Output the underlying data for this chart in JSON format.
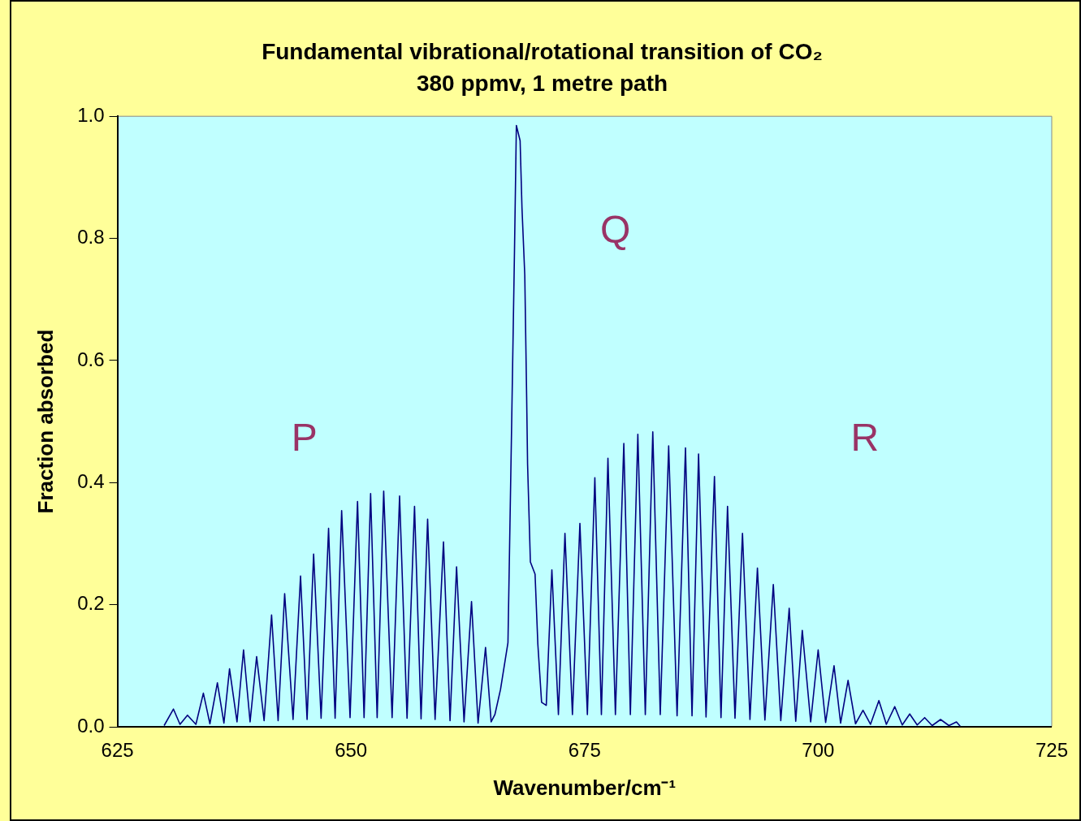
{
  "chart_data": {
    "type": "line",
    "title": "Fundamental vibrational/rotational transition of CO₂",
    "subtitle": "380 ppmv, 1 metre path",
    "xlabel": "Wavenumber/cm⁻¹",
    "ylabel": "Fraction absorbed",
    "xlim": [
      625,
      725
    ],
    "xticks": [
      625,
      650,
      675,
      700,
      725
    ],
    "ylim": [
      0,
      1
    ],
    "yticks": [
      {
        "value": 0,
        "label": "0.0"
      },
      {
        "value": 0.2,
        "label": "0.2"
      },
      {
        "value": 0.4,
        "label": "0.4"
      },
      {
        "value": 0.6,
        "label": "0.6"
      },
      {
        "value": 0.8,
        "label": "0.8"
      },
      {
        "value": 1,
        "label": "1.0"
      }
    ],
    "legend": false,
    "annotations": [
      "P",
      "Q",
      "R"
    ],
    "series": [
      {
        "color": "#000080",
        "x": [
          630.0,
          631.0,
          631.7,
          632.5,
          633.4,
          634.2,
          634.9,
          635.7,
          636.4,
          637.0,
          637.8,
          638.5,
          639.2,
          639.9,
          640.7,
          641.5,
          642.2,
          642.9,
          643.8,
          644.6,
          645.3,
          646.0,
          646.8,
          647.6,
          648.3,
          649.0,
          649.9,
          650.7,
          651.4,
          652.1,
          652.8,
          653.5,
          654.4,
          655.2,
          656.0,
          656.8,
          657.5,
          658.2,
          659.0,
          659.9,
          660.6,
          661.3,
          662.1,
          662.9,
          663.6,
          664.4,
          665.0,
          665.4,
          666.0,
          666.8,
          667.2,
          667.5,
          667.7,
          668.1,
          668.3,
          668.6,
          668.8,
          668.9,
          669.2,
          669.7,
          670.0,
          670.4,
          670.9,
          671.5,
          672.2,
          672.9,
          673.7,
          674.5,
          675.3,
          676.1,
          676.8,
          677.5,
          678.3,
          679.2,
          679.9,
          680.7,
          681.5,
          682.3,
          683.1,
          684.0,
          684.9,
          685.8,
          686.5,
          687.2,
          688.0,
          688.9,
          689.6,
          690.3,
          691.1,
          691.9,
          692.7,
          693.5,
          694.3,
          695.2,
          696.0,
          696.9,
          697.6,
          698.3,
          699.2,
          700.0,
          700.8,
          701.7,
          702.4,
          703.2,
          704.0,
          704.8,
          705.6,
          706.5,
          707.3,
          708.2,
          709.0,
          709.8,
          710.6,
          711.4,
          712.2,
          713.1,
          714.0,
          714.8,
          715.2
        ],
        "values": [
          0.002,
          0.029,
          0.004,
          0.019,
          0.004,
          0.055,
          0.005,
          0.072,
          0.006,
          0.095,
          0.008,
          0.126,
          0.008,
          0.115,
          0.01,
          0.183,
          0.01,
          0.218,
          0.012,
          0.247,
          0.012,
          0.283,
          0.014,
          0.325,
          0.014,
          0.354,
          0.015,
          0.369,
          0.015,
          0.382,
          0.015,
          0.386,
          0.015,
          0.378,
          0.014,
          0.361,
          0.013,
          0.34,
          0.012,
          0.303,
          0.01,
          0.262,
          0.008,
          0.205,
          0.006,
          0.13,
          0.008,
          0.02,
          0.061,
          0.138,
          0.5,
          0.78,
          0.985,
          0.96,
          0.85,
          0.74,
          0.54,
          0.43,
          0.27,
          0.25,
          0.135,
          0.04,
          0.035,
          0.257,
          0.02,
          0.317,
          0.02,
          0.333,
          0.02,
          0.408,
          0.02,
          0.44,
          0.02,
          0.464,
          0.02,
          0.479,
          0.02,
          0.483,
          0.02,
          0.46,
          0.018,
          0.457,
          0.018,
          0.447,
          0.016,
          0.41,
          0.015,
          0.361,
          0.014,
          0.317,
          0.012,
          0.26,
          0.011,
          0.233,
          0.01,
          0.194,
          0.009,
          0.158,
          0.008,
          0.126,
          0.007,
          0.1,
          0.006,
          0.076,
          0.005,
          0.027,
          0.004,
          0.043,
          0.004,
          0.033,
          0.003,
          0.021,
          0.003,
          0.015,
          0.002,
          0.012,
          0.002,
          0.008,
          0.001
        ]
      }
    ]
  }
}
